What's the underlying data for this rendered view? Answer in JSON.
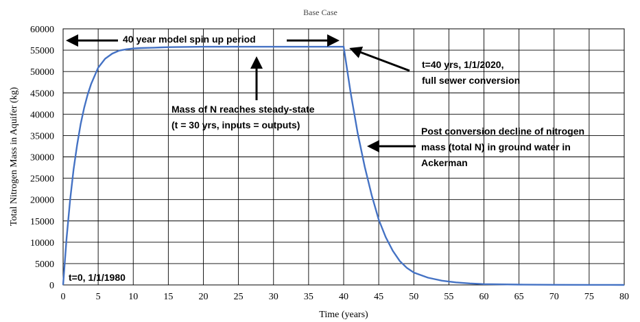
{
  "chart_data": {
    "type": "line",
    "title": "Base Case",
    "xlabel": "Time (years)",
    "ylabel": "Total Nitrogen Mass in Aquifer (kg)",
    "xlim": [
      0,
      80
    ],
    "ylim": [
      0,
      60000
    ],
    "xticks": [
      0,
      5,
      10,
      15,
      20,
      25,
      30,
      35,
      40,
      45,
      50,
      55,
      60,
      65,
      70,
      75,
      80
    ],
    "yticks": [
      0,
      5000,
      10000,
      15000,
      20000,
      25000,
      30000,
      35000,
      40000,
      45000,
      50000,
      55000,
      60000
    ],
    "grid": true,
    "legend": "none",
    "series_color": "#4472C4",
    "series": [
      {
        "x": [
          0,
          0.5,
          1,
          1.5,
          2,
          2.5,
          3,
          3.5,
          4,
          5,
          6,
          7,
          8,
          9,
          10,
          11,
          12,
          13,
          14,
          15,
          17,
          20,
          25,
          30,
          35,
          40,
          41,
          42,
          43,
          44,
          45,
          46,
          47,
          48,
          49,
          50,
          52,
          54,
          56,
          58,
          60,
          65,
          70,
          75,
          80
        ],
        "y": [
          0,
          11000,
          19900,
          27100,
          32900,
          37700,
          41500,
          44600,
          47100,
          50900,
          53000,
          54200,
          54900,
          55200,
          55400,
          55500,
          55550,
          55600,
          55650,
          55700,
          55750,
          55800,
          55800,
          55800,
          55800,
          55800,
          45000,
          35500,
          27700,
          21000,
          15300,
          11200,
          8000,
          5600,
          4000,
          2900,
          1700,
          1000,
          600,
          350,
          200,
          80,
          30,
          10,
          0
        ]
      }
    ],
    "annotations": [
      {
        "lines": [
          "40 year model spin up period"
        ]
      },
      {
        "lines": [
          "Mass of N reaches steady-state",
          "(t = 30 yrs, inputs = outputs)"
        ]
      },
      {
        "lines": [
          "t=40 yrs, 1/1/2020,",
          "full sewer conversion"
        ]
      },
      {
        "lines": [
          "Post conversion decline of nitrogen",
          "mass (total N) in ground water in",
          "Ackerman"
        ]
      },
      {
        "lines": [
          "t=0, 1/1/1980"
        ]
      }
    ]
  }
}
